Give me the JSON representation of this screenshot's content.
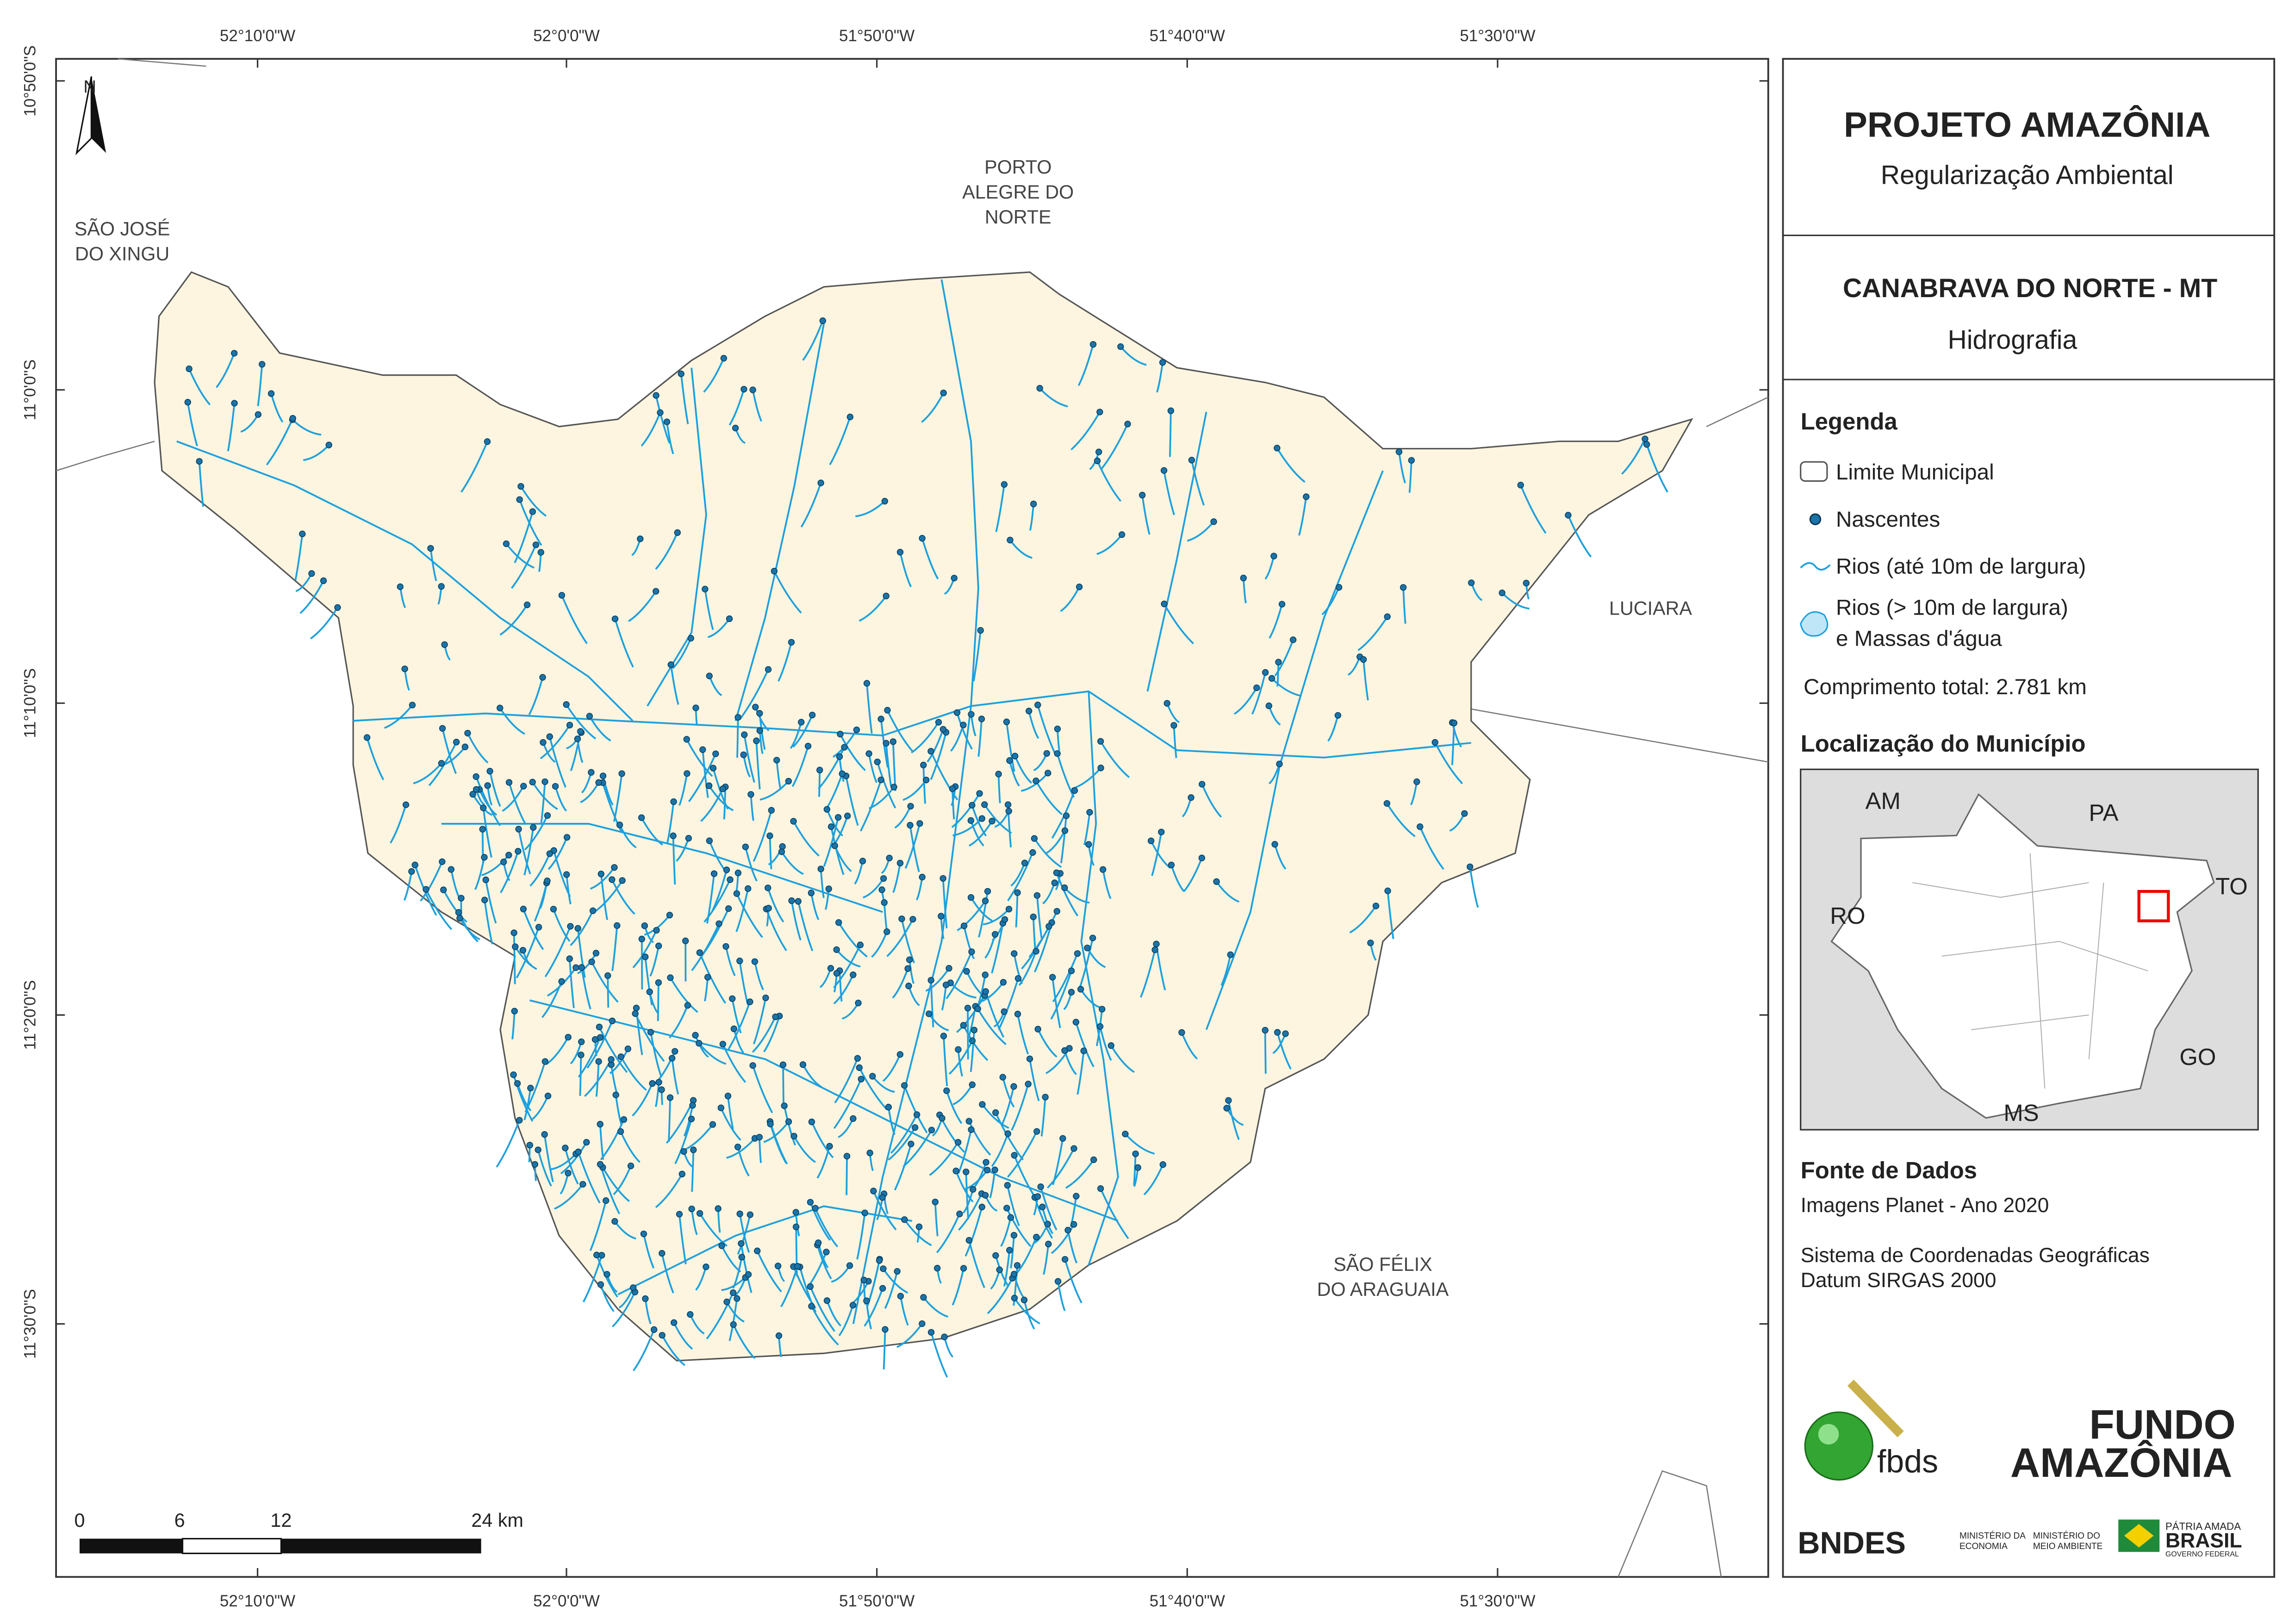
{
  "header": {
    "title": "PROJETO AMAZÔNIA",
    "subtitle": "Regularização Ambiental"
  },
  "municipality": {
    "name": "CANABRAVA DO NORTE - MT",
    "theme": "Hidrografia"
  },
  "legend": {
    "title": "Legenda",
    "items": [
      "Limite Municipal",
      "Nascentes",
      "Rios (até 10m de largura)",
      "Rios (> 10m de largura)",
      "e Massas d'água"
    ],
    "total_length": "Comprimento total: 2.781 km"
  },
  "location": {
    "title": "Localização do Município",
    "states": [
      "AM",
      "PA",
      "TO",
      "RO",
      "GO",
      "MS"
    ]
  },
  "sources": {
    "title": "Fonte de Dados",
    "lines": [
      "Imagens Planet - Ano 2020",
      "Sistema de Coordenadas Geográficas",
      "Datum SIRGAS 2000"
    ]
  },
  "map": {
    "north": "N",
    "lon_labels": [
      "52°10'0\"W",
      "52°0'0\"W",
      "51°50'0\"W",
      "51°40'0\"W",
      "51°30'0\"W"
    ],
    "lat_labels": [
      "10°50'0\"S",
      "11°0'0\"S",
      "11°10'0\"S",
      "11°20'0\"S",
      "11°30'0\"S"
    ],
    "places": [
      [
        "SÃO JOSÉ",
        "DO XINGU"
      ],
      [
        "PORTO",
        "ALEGRE DO",
        "NORTE"
      ],
      [
        "LUCIARA"
      ],
      [
        "SÃO FÉLIX",
        "DO ARAGUAIA"
      ]
    ],
    "scale_labels": [
      "0",
      "6",
      "12",
      "24 km"
    ]
  },
  "logos": {
    "fbds": "fbds",
    "fundo": [
      "FUNDO",
      "AMAZÔNIA"
    ],
    "bndes": "BNDES",
    "ministries": [
      [
        "MINISTÉRIO DA",
        "ECONOMIA"
      ],
      [
        "MINISTÉRIO DO",
        "MEIO AMBIENTE"
      ]
    ],
    "brasil": [
      "PÁTRIA AMADA",
      "BRASIL",
      "GOVERNO FEDERAL"
    ]
  }
}
